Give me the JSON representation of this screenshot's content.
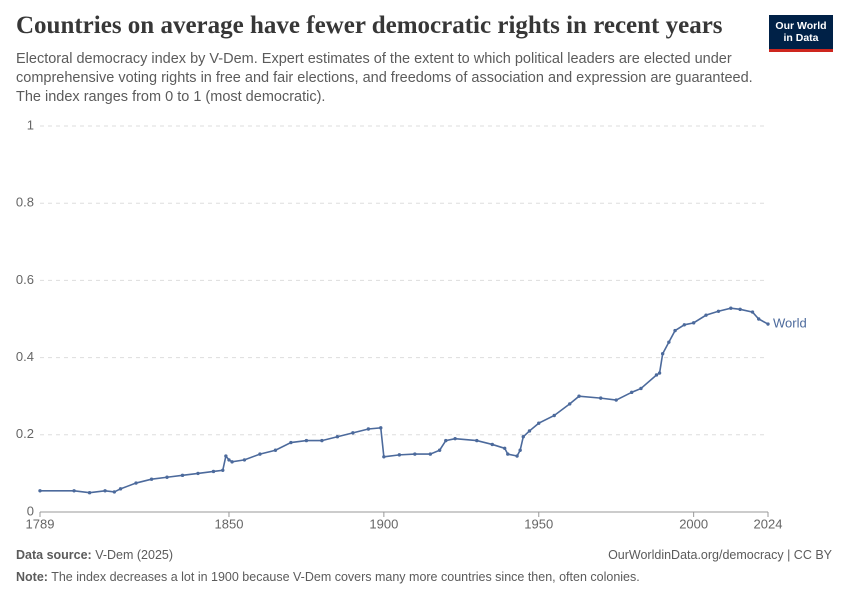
{
  "chart_data": {
    "type": "line",
    "title": "Countries on average have fewer democratic rights in recent years",
    "subtitle": "Electoral democracy index by V-Dem. Expert estimates of the extent to which political leaders are elected under comprehensive voting rights in free and fair elections, and freedoms of association and expression are guaranteed. The index ranges from 0 to 1 (most democratic).",
    "logo": [
      "Our World",
      "in Data"
    ],
    "source_label": "Data source:",
    "source": "V-Dem (2025)",
    "url": "OurWorldinData.org/democracy | CC BY",
    "note_label": "Note:",
    "note": "The index decreases a lot in 1900 because V-Dem covers many more countries since then, often colonies.",
    "x": [
      1789,
      1800,
      1805,
      1810,
      1813,
      1815,
      1820,
      1825,
      1830,
      1835,
      1840,
      1845,
      1848,
      1849,
      1850,
      1851,
      1855,
      1860,
      1865,
      1870,
      1875,
      1880,
      1885,
      1890,
      1895,
      1899,
      1900,
      1905,
      1910,
      1915,
      1918,
      1920,
      1923,
      1930,
      1935,
      1939,
      1940,
      1943,
      1944,
      1945,
      1947,
      1950,
      1955,
      1960,
      1963,
      1970,
      1975,
      1980,
      1983,
      1988,
      1989,
      1990,
      1992,
      1994,
      1997,
      2000,
      2004,
      2008,
      2012,
      2015,
      2019,
      2021,
      2024
    ],
    "series": [
      {
        "name": "World",
        "color": "#4c6a9c",
        "values": [
          0.055,
          0.055,
          0.05,
          0.055,
          0.052,
          0.06,
          0.075,
          0.085,
          0.09,
          0.095,
          0.1,
          0.105,
          0.108,
          0.145,
          0.135,
          0.13,
          0.135,
          0.15,
          0.16,
          0.18,
          0.185,
          0.185,
          0.195,
          0.205,
          0.215,
          0.218,
          0.143,
          0.148,
          0.15,
          0.15,
          0.16,
          0.185,
          0.19,
          0.185,
          0.175,
          0.165,
          0.15,
          0.145,
          0.16,
          0.195,
          0.21,
          0.23,
          0.25,
          0.28,
          0.3,
          0.295,
          0.29,
          0.31,
          0.32,
          0.355,
          0.36,
          0.41,
          0.44,
          0.47,
          0.485,
          0.49,
          0.51,
          0.52,
          0.528,
          0.525,
          0.518,
          0.5,
          0.487
        ]
      }
    ],
    "xlim": [
      1789,
      2024
    ],
    "xticks": [
      1789,
      1850,
      1900,
      1950,
      2000,
      2024
    ],
    "ylim": [
      0,
      1
    ],
    "yticks": [
      0,
      0.2,
      0.4,
      0.6,
      0.8,
      1
    ],
    "grid": true
  }
}
